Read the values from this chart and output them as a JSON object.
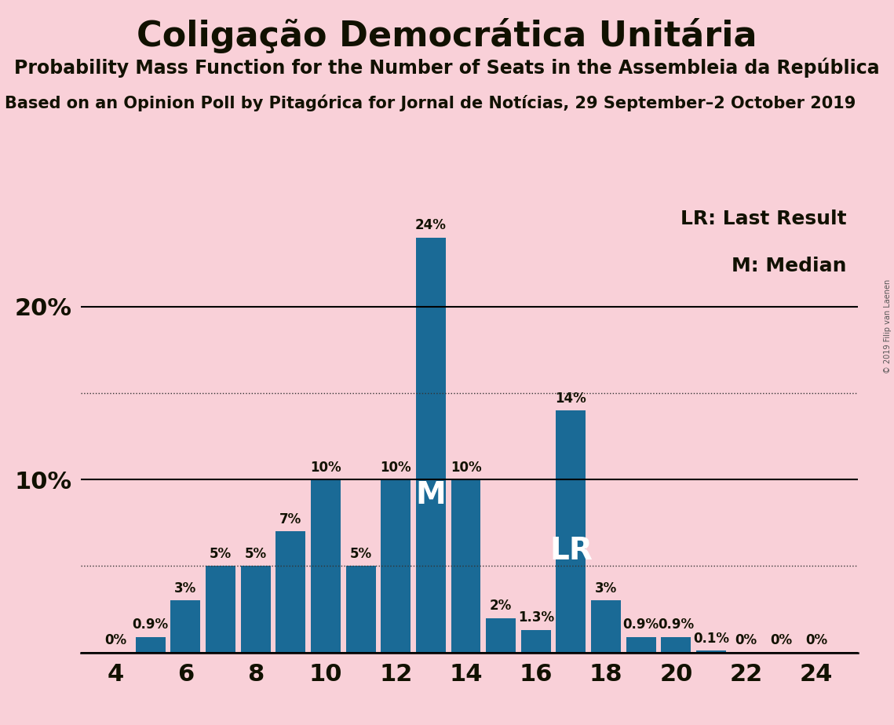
{
  "title": "Coligação Democrática Unitária",
  "subtitle": "Probability Mass Function for the Number of Seats in the Assembleia da República",
  "source": "Based on an Opinion Poll by Pitagórica for Jornal de Notícias, 29 September–2 October 2019",
  "copyright": "© 2019 Filip van Laenen",
  "background_color": "#f9d0d8",
  "bar_color": "#1a6a96",
  "seats": [
    4,
    5,
    6,
    7,
    8,
    9,
    10,
    11,
    12,
    13,
    14,
    15,
    16,
    17,
    18,
    19,
    20,
    21,
    22,
    23,
    24
  ],
  "probabilities": [
    0.0,
    0.9,
    3.0,
    5.0,
    5.0,
    7.0,
    10.0,
    5.0,
    10.0,
    24.0,
    10.0,
    2.0,
    1.3,
    14.0,
    3.0,
    0.9,
    0.9,
    0.1,
    0.0,
    0.0,
    0.0
  ],
  "labels": [
    "0%",
    "0.9%",
    "3%",
    "5%",
    "5%",
    "7%",
    "10%",
    "5%",
    "10%",
    "24%",
    "10%",
    "2%",
    "1.3%",
    "14%",
    "3%",
    "0.9%",
    "0.9%",
    "0.1%",
    "0%",
    "0%",
    "0%"
  ],
  "median_seat": 13,
  "last_result_seat": 17,
  "solid_gridlines": [
    0,
    10,
    20
  ],
  "dotted_gridlines": [
    5,
    15
  ],
  "ylim": [
    0,
    26
  ],
  "xlabel_seats": [
    4,
    6,
    8,
    10,
    12,
    14,
    16,
    18,
    20,
    22,
    24
  ],
  "title_fontsize": 32,
  "subtitle_fontsize": 17,
  "source_fontsize": 15,
  "label_fontsize": 12,
  "axis_fontsize": 22,
  "legend_fontsize": 18,
  "annotation_fontsize": 28,
  "ytick_positions": [
    10,
    20
  ],
  "ytick_labels": [
    "10%",
    "20%"
  ]
}
